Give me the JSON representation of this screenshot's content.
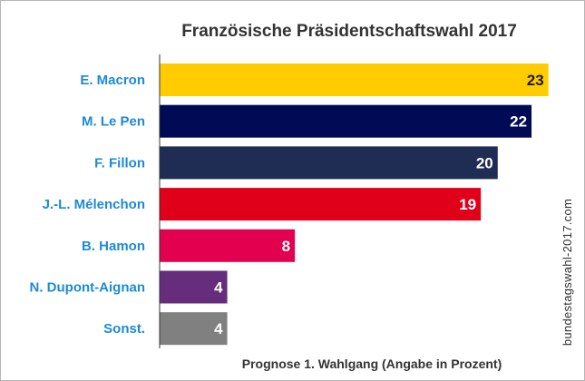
{
  "chart_data": {
    "type": "bar",
    "orientation": "horizontal",
    "title": "Französische Präsidentschaftswahl 2017",
    "subtitle": "Prognose 1. Wahlgang (Angabe in Prozent)",
    "source": "bundestagswahl-2017.com",
    "categories": [
      "E. Macron",
      "M. Le Pen",
      "F. Fillon",
      "J.-L. Mélenchon",
      "B. Hamon",
      "N. Dupont-Aignan",
      "Sonst."
    ],
    "values": [
      23,
      22,
      20,
      19,
      8,
      4,
      4
    ],
    "colors": [
      "#ffcc00",
      "#000a55",
      "#1f2d54",
      "#e1001a",
      "#e3004f",
      "#652d7c",
      "#808080"
    ],
    "label_colors": [
      "#1a1a1a",
      "#ffffff",
      "#ffffff",
      "#ffffff",
      "#ffffff",
      "#ffffff",
      "#ffffff"
    ],
    "category_label_color": "#1d8ad6",
    "xlim": [
      0,
      23.5
    ],
    "grid": false
  }
}
